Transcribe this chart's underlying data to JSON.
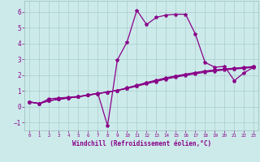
{
  "bg_color": "#cceaea",
  "grid_color": "#aacccc",
  "line_color": "#880088",
  "xlabel": "Windchill (Refroidissement éolien,°C)",
  "xlabel_color": "#880088",
  "tick_color": "#880088",
  "xlim": [
    -0.5,
    23.5
  ],
  "ylim": [
    -1.5,
    6.7
  ],
  "yticks": [
    -1,
    0,
    1,
    2,
    3,
    4,
    5,
    6
  ],
  "xticks": [
    0,
    1,
    2,
    3,
    4,
    5,
    6,
    7,
    8,
    9,
    10,
    11,
    12,
    13,
    14,
    15,
    16,
    17,
    18,
    19,
    20,
    21,
    22,
    23
  ],
  "line1_x": [
    0,
    1,
    2,
    3,
    4,
    5,
    6,
    7,
    8,
    9,
    10,
    11,
    12,
    13,
    14,
    15,
    16,
    17,
    18,
    19,
    20,
    21,
    22,
    23
  ],
  "line1_y": [
    0.3,
    0.2,
    0.5,
    0.55,
    0.6,
    0.65,
    0.75,
    0.85,
    -1.2,
    2.95,
    4.1,
    6.1,
    5.2,
    5.65,
    5.8,
    5.85,
    5.85,
    4.6,
    2.8,
    2.5,
    2.55,
    1.65,
    2.15,
    2.5
  ],
  "line2_x": [
    0,
    1,
    2,
    3,
    4,
    5,
    6,
    7,
    8,
    9,
    10,
    11,
    12,
    13,
    14,
    15,
    16,
    17,
    18,
    19,
    20,
    21,
    22,
    23
  ],
  "line2_y": [
    0.3,
    0.2,
    0.38,
    0.48,
    0.55,
    0.63,
    0.73,
    0.83,
    0.93,
    1.03,
    1.15,
    1.3,
    1.45,
    1.6,
    1.75,
    1.87,
    1.98,
    2.08,
    2.18,
    2.26,
    2.33,
    2.38,
    2.43,
    2.49
  ],
  "line3_x": [
    0,
    1,
    2,
    3,
    4,
    5,
    6,
    7,
    8,
    9,
    10,
    11,
    12,
    13,
    14,
    15,
    16,
    17,
    18,
    19,
    20,
    21,
    22,
    23
  ],
  "line3_y": [
    0.3,
    0.2,
    0.38,
    0.48,
    0.55,
    0.63,
    0.73,
    0.83,
    0.93,
    1.03,
    1.18,
    1.33,
    1.5,
    1.65,
    1.8,
    1.93,
    2.04,
    2.14,
    2.24,
    2.3,
    2.37,
    2.42,
    2.47,
    2.53
  ],
  "line4_x": [
    0,
    1,
    2,
    3,
    4,
    5,
    6,
    7,
    8,
    9,
    10,
    11,
    12,
    13,
    14,
    15,
    16,
    17,
    18,
    19,
    20,
    21,
    22,
    23
  ],
  "line4_y": [
    0.3,
    0.2,
    0.38,
    0.48,
    0.55,
    0.63,
    0.73,
    0.83,
    0.93,
    1.03,
    1.2,
    1.36,
    1.53,
    1.68,
    1.83,
    1.95,
    2.06,
    2.16,
    2.26,
    2.32,
    2.38,
    2.44,
    2.49,
    2.55
  ]
}
